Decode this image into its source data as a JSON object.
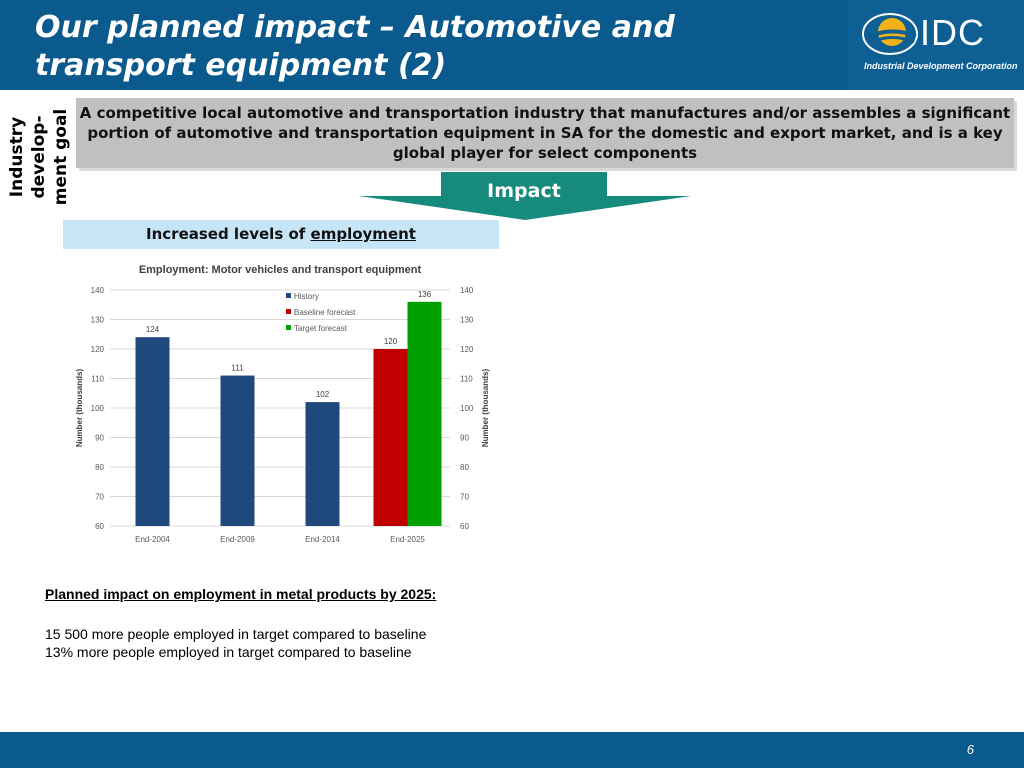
{
  "slide": {
    "title": "Our planned impact – Automotive and transport equipment (2)",
    "logo_name": "IDC",
    "logo_subtitle": "Industrial Development Corporation",
    "side_label": "Industry develop-ment goal",
    "goal_text": "A competitive local automotive and transportation industry that manufactures and/or assembles a significant portion of automotive and transportation equipment in SA  for the domestic and export market, and is a key global player for select components",
    "impact_label": "Impact",
    "employment_label_prefix": "Increased levels of ",
    "employment_label_link": "employment",
    "notes_heading": "Planned impact on employment in metal products by 2025:",
    "notes_line1": "15 500 more people employed in target compared to baseline",
    "notes_line2": "13%  more people employed in target compared to baseline",
    "page_number": "6"
  },
  "colors": {
    "header": "#0b5a8e",
    "history": "#1f497d",
    "baseline": "#c00000",
    "target": "#00a000",
    "impact_teal": "#178a7e"
  },
  "chart_data": {
    "type": "bar",
    "title": "Employment: Motor vehicles and transport equipment",
    "categories": [
      "End-2004",
      "End-2009",
      "End-2014",
      "End-2025"
    ],
    "series": [
      {
        "name": "History",
        "values": [
          124,
          111,
          102,
          null
        ]
      },
      {
        "name": "Baseline forecast",
        "values": [
          null,
          null,
          null,
          120
        ]
      },
      {
        "name": "Target forecast",
        "values": [
          null,
          null,
          null,
          136
        ]
      }
    ],
    "data_labels": [
      "124",
      "111",
      "102",
      "120",
      "136"
    ],
    "ylabel": "Number (thousands)",
    "y2label": "Number (thousands)",
    "ylim": [
      60,
      140
    ],
    "yticks": [
      60,
      70,
      80,
      90,
      100,
      110,
      120,
      130,
      140
    ],
    "grid": true,
    "legend": "top-center"
  }
}
